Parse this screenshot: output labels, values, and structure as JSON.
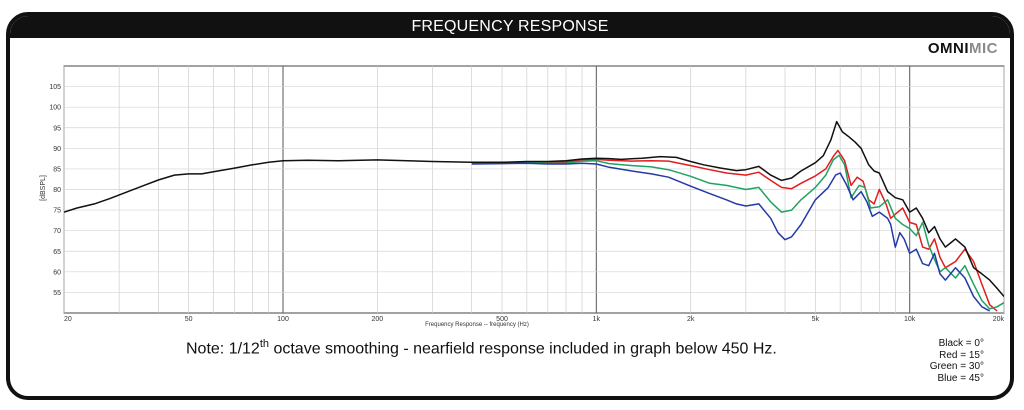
{
  "header": {
    "title": "FREQUENCY RESPONSE"
  },
  "logo": {
    "part1": "OMNI",
    "part2": "MIC"
  },
  "note": {
    "prefix": "Note: 1/12",
    "sup": "th",
    "suffix": " octave smoothing - nearfield response included in graph below 450 Hz."
  },
  "legend": [
    "Black = 0°",
    "Red = 15°",
    "Green = 30°",
    "Blue = 45°"
  ],
  "chart_data": {
    "type": "line",
    "xlabel": "Frequency Response -- frequency (Hz)",
    "ylabel": "[dBSPL]",
    "x_scale": "log",
    "xlim": [
      20,
      20000
    ],
    "ylim": [
      50,
      110
    ],
    "grid": true,
    "x_ticks": [
      {
        "v": 20,
        "t": "20"
      },
      {
        "v": 50,
        "t": "50"
      },
      {
        "v": 100,
        "t": "100"
      },
      {
        "v": 200,
        "t": "200"
      },
      {
        "v": 500,
        "t": "500"
      },
      {
        "v": 1000,
        "t": "1k"
      },
      {
        "v": 2000,
        "t": "2k"
      },
      {
        "v": 5000,
        "t": "5k"
      },
      {
        "v": 10000,
        "t": "10k"
      },
      {
        "v": 20000,
        "t": "20k"
      }
    ],
    "y_ticks": [
      55,
      60,
      65,
      70,
      75,
      80,
      85,
      90,
      95,
      100,
      105
    ],
    "series": [
      {
        "name": "Black = 0°",
        "color": "#111111",
        "points": [
          [
            20,
            74.5
          ],
          [
            22,
            75.5
          ],
          [
            25,
            76.5
          ],
          [
            28,
            77.8
          ],
          [
            32,
            79.5
          ],
          [
            36,
            81
          ],
          [
            40,
            82.3
          ],
          [
            45,
            83.5
          ],
          [
            50,
            83.8
          ],
          [
            55,
            83.8
          ],
          [
            60,
            84.3
          ],
          [
            70,
            85.2
          ],
          [
            80,
            86
          ],
          [
            90,
            86.6
          ],
          [
            100,
            87
          ],
          [
            120,
            87.1
          ],
          [
            150,
            87
          ],
          [
            200,
            87.2
          ],
          [
            250,
            87
          ],
          [
            300,
            86.8
          ],
          [
            400,
            86.6
          ],
          [
            500,
            86.6
          ],
          [
            600,
            86.8
          ],
          [
            700,
            86.8
          ],
          [
            800,
            87
          ],
          [
            900,
            87.4
          ],
          [
            1000,
            87.6
          ],
          [
            1100,
            87.5
          ],
          [
            1200,
            87.3
          ],
          [
            1400,
            87.6
          ],
          [
            1600,
            88
          ],
          [
            1800,
            87.8
          ],
          [
            2000,
            86.8
          ],
          [
            2200,
            86
          ],
          [
            2500,
            85.2
          ],
          [
            2800,
            84.6
          ],
          [
            3000,
            84.8
          ],
          [
            3300,
            85.6
          ],
          [
            3600,
            83.5
          ],
          [
            3900,
            82.2
          ],
          [
            4200,
            82.8
          ],
          [
            4500,
            84.5
          ],
          [
            5000,
            86.5
          ],
          [
            5300,
            88.2
          ],
          [
            5600,
            92
          ],
          [
            5850,
            96.5
          ],
          [
            6100,
            94
          ],
          [
            6400,
            92.8
          ],
          [
            6700,
            91.5
          ],
          [
            7000,
            90
          ],
          [
            7400,
            86
          ],
          [
            7700,
            84.5
          ],
          [
            8000,
            84
          ],
          [
            8500,
            79.5
          ],
          [
            9000,
            78
          ],
          [
            9500,
            77.5
          ],
          [
            10000,
            74.5
          ],
          [
            10500,
            75.5
          ],
          [
            11000,
            73
          ],
          [
            11500,
            69.5
          ],
          [
            12000,
            71
          ],
          [
            12500,
            68
          ],
          [
            13000,
            66
          ],
          [
            13500,
            67
          ],
          [
            14000,
            68
          ],
          [
            15000,
            66
          ],
          [
            16000,
            61
          ],
          [
            17000,
            59.5
          ],
          [
            18000,
            58
          ],
          [
            19000,
            56
          ],
          [
            20000,
            54
          ]
        ]
      },
      {
        "name": "Red = 15°",
        "color": "#e11d1d",
        "points": [
          [
            400,
            86.5
          ],
          [
            500,
            86.5
          ],
          [
            600,
            86.7
          ],
          [
            700,
            86.6
          ],
          [
            800,
            86.7
          ],
          [
            900,
            87.2
          ],
          [
            1000,
            87.3
          ],
          [
            1100,
            87.1
          ],
          [
            1300,
            86.9
          ],
          [
            1500,
            87
          ],
          [
            1700,
            86.9
          ],
          [
            2000,
            85.8
          ],
          [
            2300,
            84.8
          ],
          [
            2600,
            84
          ],
          [
            3000,
            83.5
          ],
          [
            3300,
            84.2
          ],
          [
            3600,
            82.2
          ],
          [
            3900,
            80.5
          ],
          [
            4200,
            80.2
          ],
          [
            4500,
            81.5
          ],
          [
            5000,
            83.3
          ],
          [
            5400,
            85
          ],
          [
            5700,
            88
          ],
          [
            5900,
            89.5
          ],
          [
            6200,
            87
          ],
          [
            6500,
            81
          ],
          [
            6800,
            83
          ],
          [
            7100,
            82
          ],
          [
            7400,
            77.5
          ],
          [
            7700,
            76.5
          ],
          [
            8000,
            80
          ],
          [
            8400,
            76.5
          ],
          [
            8700,
            73
          ],
          [
            9000,
            74
          ],
          [
            9500,
            75.5
          ],
          [
            10000,
            72
          ],
          [
            10500,
            71.5
          ],
          [
            11000,
            66
          ],
          [
            11500,
            65.5
          ],
          [
            12000,
            68
          ],
          [
            12500,
            63.5
          ],
          [
            13000,
            61
          ],
          [
            14000,
            62.5
          ],
          [
            15000,
            65.5
          ],
          [
            16000,
            62.5
          ],
          [
            17000,
            57
          ],
          [
            18000,
            52
          ],
          [
            19000,
            50.5
          ]
        ]
      },
      {
        "name": "Green = 30°",
        "color": "#1fa363",
        "points": [
          [
            400,
            86.5
          ],
          [
            500,
            86.5
          ],
          [
            600,
            86.6
          ],
          [
            700,
            86.4
          ],
          [
            800,
            86.4
          ],
          [
            900,
            86.9
          ],
          [
            1000,
            87
          ],
          [
            1100,
            86.3
          ],
          [
            1300,
            85.8
          ],
          [
            1500,
            85.5
          ],
          [
            1700,
            84.8
          ],
          [
            2000,
            83.2
          ],
          [
            2300,
            81.5
          ],
          [
            2600,
            81
          ],
          [
            3000,
            80
          ],
          [
            3300,
            80.5
          ],
          [
            3600,
            77
          ],
          [
            3900,
            74.5
          ],
          [
            4200,
            75
          ],
          [
            4500,
            77.5
          ],
          [
            5000,
            80.5
          ],
          [
            5400,
            83.5
          ],
          [
            5700,
            87.2
          ],
          [
            5950,
            88.3
          ],
          [
            6200,
            86
          ],
          [
            6500,
            78
          ],
          [
            6900,
            81
          ],
          [
            7200,
            80.5
          ],
          [
            7500,
            75.5
          ],
          [
            8000,
            75.8
          ],
          [
            8500,
            77.5
          ],
          [
            9000,
            73
          ],
          [
            9500,
            71.5
          ],
          [
            10000,
            70.5
          ],
          [
            10500,
            68.8
          ],
          [
            11000,
            72
          ],
          [
            11500,
            66.5
          ],
          [
            12000,
            63
          ],
          [
            12500,
            60
          ],
          [
            13000,
            61
          ],
          [
            14000,
            58.5
          ],
          [
            15000,
            61.5
          ],
          [
            16000,
            57
          ],
          [
            17000,
            53
          ],
          [
            18000,
            51
          ],
          [
            19000,
            51.5
          ],
          [
            20000,
            52.5
          ]
        ]
      },
      {
        "name": "Blue = 45°",
        "color": "#243aa6",
        "points": [
          [
            400,
            86.2
          ],
          [
            500,
            86.3
          ],
          [
            600,
            86.4
          ],
          [
            700,
            86.2
          ],
          [
            800,
            86.2
          ],
          [
            900,
            86.4
          ],
          [
            1000,
            86.2
          ],
          [
            1100,
            85.4
          ],
          [
            1300,
            84.5
          ],
          [
            1500,
            83.8
          ],
          [
            1700,
            83
          ],
          [
            2000,
            80.8
          ],
          [
            2300,
            79
          ],
          [
            2600,
            77.5
          ],
          [
            2800,
            76.5
          ],
          [
            3000,
            76
          ],
          [
            3300,
            76.5
          ],
          [
            3600,
            73
          ],
          [
            3800,
            69.5
          ],
          [
            4000,
            67.8
          ],
          [
            4200,
            68.5
          ],
          [
            4500,
            71.5
          ],
          [
            5000,
            77.5
          ],
          [
            5500,
            80.5
          ],
          [
            5800,
            83.5
          ],
          [
            6000,
            84
          ],
          [
            6300,
            81
          ],
          [
            6600,
            77.5
          ],
          [
            7000,
            79.5
          ],
          [
            7300,
            77
          ],
          [
            7600,
            73.5
          ],
          [
            8000,
            74.5
          ],
          [
            8500,
            73
          ],
          [
            8700,
            71.5
          ],
          [
            9000,
            66
          ],
          [
            9300,
            69.5
          ],
          [
            9600,
            68
          ],
          [
            10000,
            64.5
          ],
          [
            10500,
            65.5
          ],
          [
            11000,
            62
          ],
          [
            11500,
            61.5
          ],
          [
            12000,
            64.5
          ],
          [
            12500,
            59.5
          ],
          [
            13000,
            58
          ],
          [
            14000,
            61
          ],
          [
            15000,
            58.5
          ],
          [
            16000,
            54
          ],
          [
            17000,
            51.5
          ],
          [
            18000,
            50.5
          ]
        ]
      }
    ]
  }
}
